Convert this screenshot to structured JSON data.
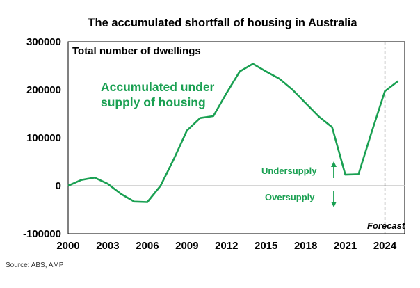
{
  "chart_data": {
    "type": "line",
    "title": "The accumulated shortfall of housing in Australia",
    "subtitle": "Total number of dwellings",
    "x": [
      2000,
      2001,
      2002,
      2003,
      2004,
      2005,
      2006,
      2007,
      2008,
      2009,
      2010,
      2011,
      2012,
      2013,
      2014,
      2015,
      2016,
      2017,
      2018,
      2019,
      2020,
      2021,
      2022,
      2023,
      2024,
      2025
    ],
    "series": [
      {
        "values": [
          0,
          12000,
          17000,
          4000,
          -17000,
          -33000,
          -34000,
          0,
          55000,
          115000,
          141000,
          145000,
          193000,
          238000,
          254000,
          238000,
          223000,
          200000,
          172000,
          144000,
          122000,
          23000,
          24000,
          112000,
          197000,
          218000
        ]
      }
    ],
    "x_ticks": [
      "2000",
      "2003",
      "2006",
      "2009",
      "2012",
      "2015",
      "2018",
      "2021",
      "2024"
    ],
    "y_ticks": [
      "300000",
      "200000",
      "100000",
      "0",
      "-100000"
    ],
    "xlim": [
      2000,
      2025.5
    ],
    "ylim": [
      -100000,
      300000
    ],
    "grid": false,
    "line_color": "#1aa052",
    "annotations": {
      "under_line1": "Accumulated under",
      "under_line2": "supply of housing",
      "undersupply": "Undersupply",
      "oversupply": "Oversupply",
      "forecast": "Forecast"
    },
    "forecast_start": 2024,
    "source": "Source: ABS, AMP"
  }
}
